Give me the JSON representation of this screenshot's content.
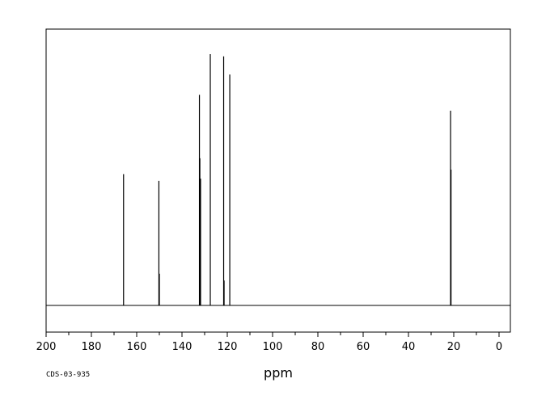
{
  "chart_data": {
    "type": "line",
    "title": "",
    "xlabel": "ppm",
    "ylabel": "",
    "xlim": [
      200,
      -5
    ],
    "x_reversed": true,
    "x_ticks": [
      200,
      180,
      160,
      140,
      120,
      100,
      80,
      60,
      40,
      20,
      0
    ],
    "x_tick_labels": [
      "200",
      "180",
      "160",
      "140",
      "120",
      "100",
      "80",
      "60",
      "40",
      "20",
      "0"
    ],
    "ylim": [
      -0.12,
      1.2
    ],
    "grid": false,
    "legend": "none",
    "code": "CDS-03-935",
    "series": [
      {
        "peaks": [
          {
            "ppm": 165.8,
            "intensity": 0.58
          },
          {
            "ppm": 150.2,
            "intensity": 0.55
          },
          {
            "ppm": 150.0,
            "intensity": 0.14
          },
          {
            "ppm": 132.3,
            "intensity": 0.93
          },
          {
            "ppm": 132.1,
            "intensity": 0.65
          },
          {
            "ppm": 131.8,
            "intensity": 0.56
          },
          {
            "ppm": 127.5,
            "intensity": 1.11
          },
          {
            "ppm": 121.6,
            "intensity": 1.1
          },
          {
            "ppm": 121.4,
            "intensity": 0.11
          },
          {
            "ppm": 118.9,
            "intensity": 1.02
          },
          {
            "ppm": 21.4,
            "intensity": 0.86
          },
          {
            "ppm": 21.2,
            "intensity": 0.6
          }
        ]
      }
    ]
  }
}
